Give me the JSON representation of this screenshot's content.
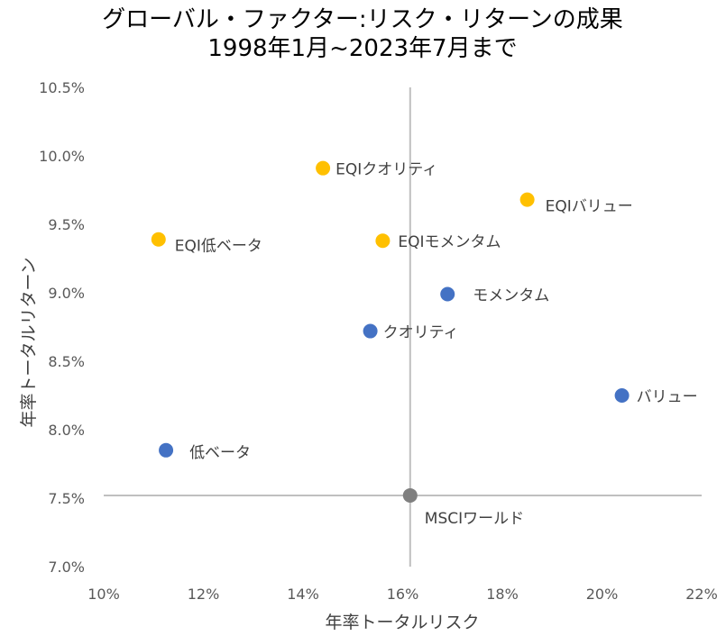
{
  "chart_data": {
    "type": "scatter",
    "title_line1": "グローバル・ファクター:リスク・リターンの成果",
    "title_line2": "1998年1月~2023年7月まで",
    "xlabel": "年率トータルリスク",
    "ylabel": "年率トータルリターン",
    "xlim": [
      10,
      22
    ],
    "ylim": [
      7.0,
      10.5
    ],
    "x_ticks": [
      10,
      12,
      14,
      16,
      18,
      20,
      22
    ],
    "x_tick_labels": [
      "10%",
      "12%",
      "14%",
      "16%",
      "18%",
      "20%",
      "22%"
    ],
    "y_ticks": [
      7.0,
      7.5,
      8.0,
      8.5,
      9.0,
      9.5,
      10.0,
      10.5
    ],
    "y_tick_labels": [
      "7.0%",
      "7.5%",
      "8.0%",
      "8.5%",
      "9.0%",
      "9.5%",
      "10.0%",
      "10.5%"
    ],
    "grid": false,
    "reference_lines": {
      "x": 16.15,
      "y": 7.52
    },
    "colors": {
      "EQI": "#FFC000",
      "factor": "#4472C4",
      "benchmark": "#7F7F7F"
    },
    "points": [
      {
        "label": "EQIクオリティ",
        "x": 14.4,
        "y": 9.91,
        "group": "EQI"
      },
      {
        "label": "EQIバリュー",
        "x": 18.5,
        "y": 9.68,
        "group": "EQI"
      },
      {
        "label": "EQI低ベータ",
        "x": 11.1,
        "y": 9.39,
        "group": "EQI"
      },
      {
        "label": "EQIモメンタム",
        "x": 15.6,
        "y": 9.38,
        "group": "EQI"
      },
      {
        "label": "モメンタム",
        "x": 16.9,
        "y": 8.99,
        "group": "factor"
      },
      {
        "label": "クオリティ",
        "x": 15.35,
        "y": 8.72,
        "group": "factor"
      },
      {
        "label": "バリュー",
        "x": 20.4,
        "y": 8.25,
        "group": "factor"
      },
      {
        "label": "低ベータ",
        "x": 11.25,
        "y": 7.85,
        "group": "factor"
      },
      {
        "label": "MSCIワールド",
        "x": 16.15,
        "y": 7.52,
        "group": "benchmark"
      }
    ]
  }
}
